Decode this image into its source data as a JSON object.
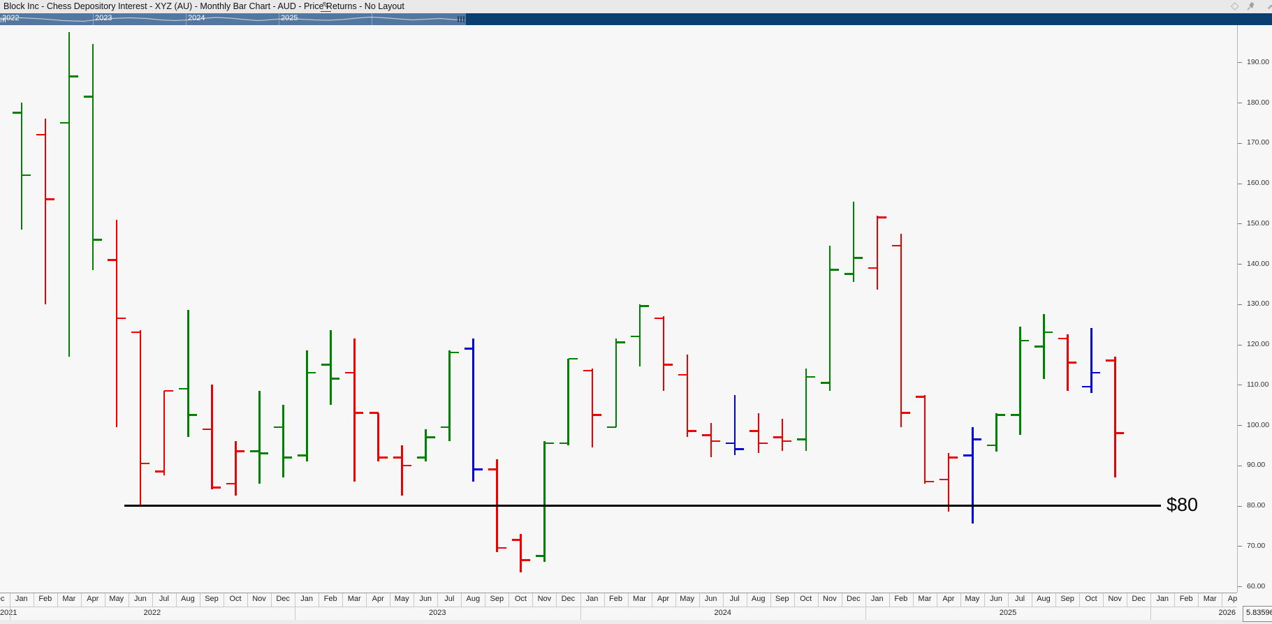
{
  "title_bar": {
    "title": "Block Inc - Chess Depository Interest - XYZ (AU) - Monthly Bar Chart - AUD - Price Returns - No Layout",
    "edit_icon": "pencil-icon",
    "diamond_icon": "◇",
    "corner_icon": "⬈"
  },
  "navigator": {
    "years": [
      "2022",
      "2023",
      "2024",
      "2025"
    ],
    "selected_region_color": "#54779e",
    "unselected_region_color": "#0d3e70"
  },
  "y_axis": {
    "labels": [
      "190.00",
      "180.00",
      "170.00",
      "160.00",
      "150.00",
      "140.00",
      "130.00",
      "120.00",
      "110.00",
      "100.00",
      "90.00",
      "80.00",
      "70.00",
      "60.00"
    ]
  },
  "x_axis": {
    "months_cycle": [
      "Jan",
      "Feb",
      "Mar",
      "Apr",
      "May",
      "Jun",
      "Jul",
      "Aug",
      "Sep",
      "Oct",
      "Nov",
      "Dec"
    ],
    "first_visible_month": "Dec",
    "years": [
      "2021",
      "2022",
      "2023",
      "2024",
      "2025",
      "2026"
    ]
  },
  "annotation": {
    "label": "$80",
    "price": 80
  },
  "status_value": "5.83596",
  "chart_data": {
    "type": "bar",
    "subtype": "monthly-ohlc",
    "title": "Block Inc - Chess Depository Interest - XYZ (AU) - Monthly Bar Chart - AUD - Price Returns",
    "currency": "AUD",
    "ylim": [
      60,
      190
    ],
    "grid": false,
    "colors": {
      "green": "#008000",
      "red": "#ee0000",
      "blue": "#0000dd"
    },
    "bars": [
      {
        "month": "Jan",
        "year": 2022,
        "color": "green",
        "high": 180,
        "low": 148.5,
        "open": 177.5,
        "close": 162
      },
      {
        "month": "Feb",
        "year": 2022,
        "color": "red",
        "high": 176,
        "low": 130,
        "open": 172,
        "close": 156
      },
      {
        "month": "Mar",
        "year": 2022,
        "color": "green",
        "high": 197.5,
        "low": 117,
        "open": 175,
        "close": 186.5
      },
      {
        "month": "Apr",
        "year": 2022,
        "color": "green",
        "high": 194.5,
        "low": 138.5,
        "open": 181.5,
        "close": 146
      },
      {
        "month": "May",
        "year": 2022,
        "color": "red",
        "high": 151,
        "low": 99.5,
        "open": 141,
        "close": 126.5
      },
      {
        "month": "Jun",
        "year": 2022,
        "color": "red",
        "high": 123.5,
        "low": 80,
        "open": 123,
        "close": 90.5
      },
      {
        "month": "Jul",
        "year": 2022,
        "color": "red",
        "high": 108.5,
        "low": 87.5,
        "open": 88.5,
        "close": 108.5
      },
      {
        "month": "Aug",
        "year": 2022,
        "color": "green",
        "high": 128.5,
        "low": 97,
        "open": 109,
        "close": 102.5
      },
      {
        "month": "Sep",
        "year": 2022,
        "color": "red",
        "high": 110,
        "low": 84,
        "open": 99,
        "close": 84.5
      },
      {
        "month": "Oct",
        "year": 2022,
        "color": "red",
        "high": 96,
        "low": 82.5,
        "open": 85.5,
        "close": 93.5
      },
      {
        "month": "Nov",
        "year": 2022,
        "color": "green",
        "high": 108.5,
        "low": 85.5,
        "open": 93.5,
        "close": 93
      },
      {
        "month": "Dec",
        "year": 2022,
        "color": "green",
        "high": 105,
        "low": 87,
        "open": 99.5,
        "close": 92
      },
      {
        "month": "Jan",
        "year": 2023,
        "color": "green",
        "high": 118.5,
        "low": 91,
        "open": 92.5,
        "close": 113
      },
      {
        "month": "Feb",
        "year": 2023,
        "color": "green",
        "high": 123.5,
        "low": 105,
        "open": 115,
        "close": 111.5
      },
      {
        "month": "Mar",
        "year": 2023,
        "color": "red",
        "high": 121.5,
        "low": 86,
        "open": 113,
        "close": 103
      },
      {
        "month": "Apr",
        "year": 2023,
        "color": "red",
        "high": 103,
        "low": 91,
        "open": 103,
        "close": 92
      },
      {
        "month": "May",
        "year": 2023,
        "color": "red",
        "high": 95,
        "low": 82.5,
        "open": 92,
        "close": 90
      },
      {
        "month": "Jun",
        "year": 2023,
        "color": "green",
        "high": 99,
        "low": 91,
        "open": 92,
        "close": 97
      },
      {
        "month": "Jul",
        "year": 2023,
        "color": "green",
        "high": 118.5,
        "low": 96,
        "open": 99.5,
        "close": 118
      },
      {
        "month": "Aug",
        "year": 2023,
        "color": "blue",
        "high": 121.5,
        "low": 86,
        "open": 119,
        "close": 89
      },
      {
        "month": "Sep",
        "year": 2023,
        "color": "red",
        "high": 91.5,
        "low": 68.5,
        "open": 89,
        "close": 69.5
      },
      {
        "month": "Oct",
        "year": 2023,
        "color": "red",
        "high": 73,
        "low": 63.5,
        "open": 71.5,
        "close": 66.5
      },
      {
        "month": "Nov",
        "year": 2023,
        "color": "green",
        "high": 96,
        "low": 66,
        "open": 67.5,
        "close": 95.5
      },
      {
        "month": "Dec",
        "year": 2023,
        "color": "green",
        "high": 116.5,
        "low": 95,
        "open": 95.5,
        "close": 116.5
      },
      {
        "month": "Jan",
        "year": 2024,
        "color": "red",
        "high": 114,
        "low": 94.5,
        "open": 113.5,
        "close": 102.5
      },
      {
        "month": "Feb",
        "year": 2024,
        "color": "green",
        "high": 121.5,
        "low": 99.5,
        "open": 99.5,
        "close": 120.5
      },
      {
        "month": "Mar",
        "year": 2024,
        "color": "green",
        "high": 130,
        "low": 114.5,
        "open": 122,
        "close": 129.5
      },
      {
        "month": "Apr",
        "year": 2024,
        "color": "red",
        "high": 127,
        "low": 108.5,
        "open": 126.5,
        "close": 115
      },
      {
        "month": "May",
        "year": 2024,
        "color": "red",
        "high": 117.5,
        "low": 97,
        "open": 112.5,
        "close": 98.5
      },
      {
        "month": "Jun",
        "year": 2024,
        "color": "red",
        "high": 100.5,
        "low": 92,
        "open": 97.5,
        "close": 96
      },
      {
        "month": "Jul",
        "year": 2024,
        "color": "blue",
        "high": 107.5,
        "low": 92.5,
        "open": 95.5,
        "close": 94
      },
      {
        "month": "Aug",
        "year": 2024,
        "color": "red",
        "high": 103,
        "low": 93,
        "open": 98.5,
        "close": 95.5
      },
      {
        "month": "Sep",
        "year": 2024,
        "color": "red",
        "high": 101.5,
        "low": 93.5,
        "open": 97,
        "close": 96
      },
      {
        "month": "Oct",
        "year": 2024,
        "color": "green",
        "high": 114,
        "low": 93.5,
        "open": 96.5,
        "close": 112
      },
      {
        "month": "Nov",
        "year": 2024,
        "color": "green",
        "high": 144.5,
        "low": 108.5,
        "open": 110.5,
        "close": 138.5
      },
      {
        "month": "Dec",
        "year": 2024,
        "color": "green",
        "high": 155.5,
        "low": 135.5,
        "open": 137.5,
        "close": 141.5
      },
      {
        "month": "Jan",
        "year": 2025,
        "color": "red",
        "high": 152,
        "low": 133.5,
        "open": 139,
        "close": 151.5
      },
      {
        "month": "Feb",
        "year": 2025,
        "color": "red",
        "high": 147.5,
        "low": 99.5,
        "open": 144.5,
        "close": 103
      },
      {
        "month": "Mar",
        "year": 2025,
        "color": "red",
        "high": 107.5,
        "low": 85.5,
        "open": 107,
        "close": 86
      },
      {
        "month": "Apr",
        "year": 2025,
        "color": "red",
        "high": 93,
        "low": 78.5,
        "open": 86.5,
        "close": 92
      },
      {
        "month": "May",
        "year": 2025,
        "color": "blue",
        "high": 99.5,
        "low": 75.5,
        "open": 92.5,
        "close": 96.5
      },
      {
        "month": "Jun",
        "year": 2025,
        "color": "green",
        "high": 103,
        "low": 93.5,
        "open": 95,
        "close": 102.5
      },
      {
        "month": "Jul",
        "year": 2025,
        "color": "green",
        "high": 124.5,
        "low": 97.5,
        "open": 102.5,
        "close": 121
      },
      {
        "month": "Aug",
        "year": 2025,
        "color": "green",
        "high": 127.5,
        "low": 111.5,
        "open": 119.5,
        "close": 123
      },
      {
        "month": "Sep",
        "year": 2025,
        "color": "red",
        "high": 122.5,
        "low": 108.5,
        "open": 121.5,
        "close": 115.5
      },
      {
        "month": "Oct",
        "year": 2025,
        "color": "blue",
        "high": 124,
        "low": 108,
        "open": 109.5,
        "close": 113
      },
      {
        "month": "Nov",
        "year": 2025,
        "color": "red",
        "high": 117,
        "low": 87,
        "open": 116,
        "close": 98
      }
    ]
  }
}
